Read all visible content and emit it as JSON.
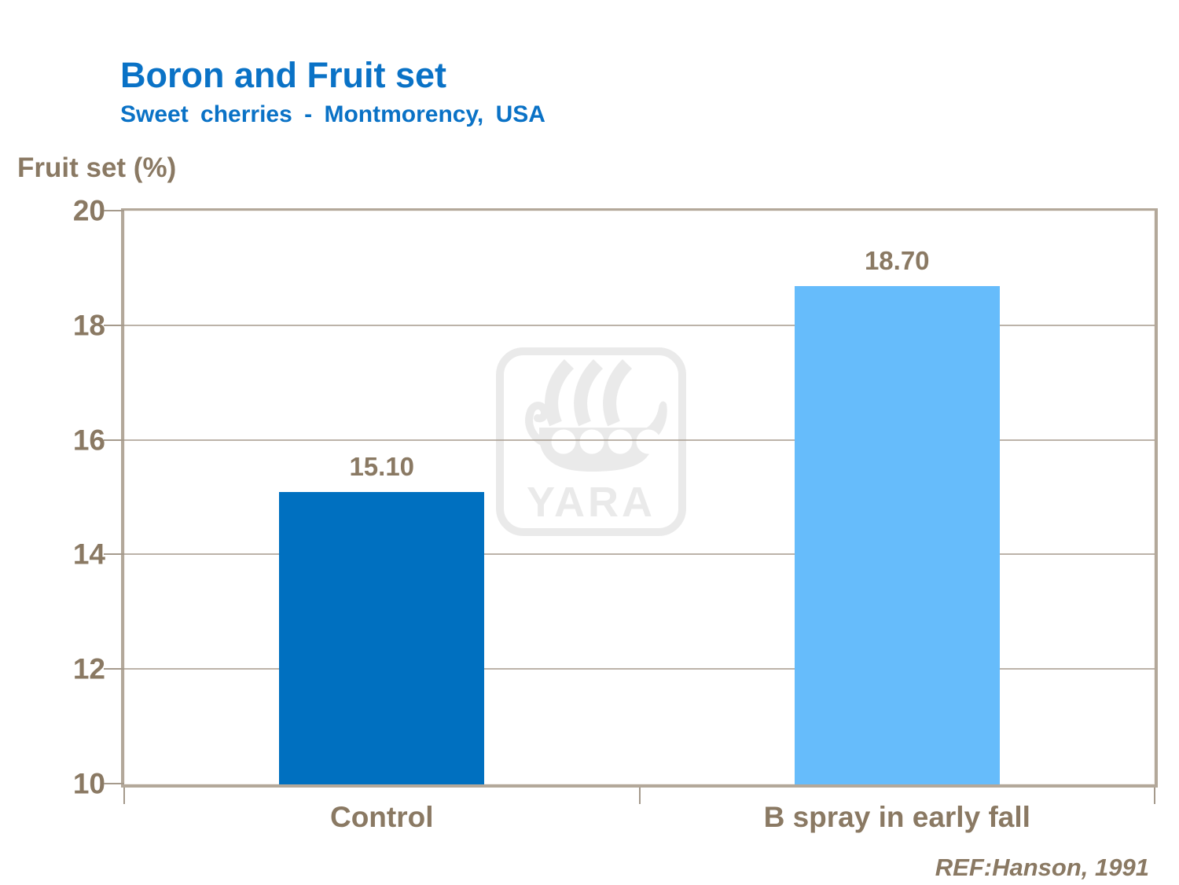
{
  "slide": {
    "title": "Boron and Fruit set",
    "subtitle": "Sweet cherries - Montmorency, USA",
    "reference": "REF:Hanson, 1991"
  },
  "watermark": {
    "icon": "yara-viking-ship-logo",
    "text": "YARA"
  },
  "colors": {
    "title_blue": "#0A72C6",
    "label_brown": "#8A7963",
    "frame_tan": "#B3A89A",
    "gridline_gray": "#A59A8C",
    "watermark_gray": "#EAEAEA"
  },
  "chart_data": {
    "type": "bar",
    "title": "Boron and Fruit set",
    "subtitle": "Sweet cherries - Montmorency, USA",
    "ylabel": "Fruit set (%)",
    "xlabel": "",
    "categories": [
      "Control",
      "B spray in early fall"
    ],
    "values": [
      15.1,
      18.7
    ],
    "value_labels": [
      "15.10",
      "18.70"
    ],
    "bar_colors": [
      "#0070C0",
      "#66BCFB"
    ],
    "ylim": [
      10,
      20
    ],
    "yticks": [
      10,
      12,
      14,
      16,
      18,
      20
    ],
    "grid": true,
    "legend": false
  }
}
